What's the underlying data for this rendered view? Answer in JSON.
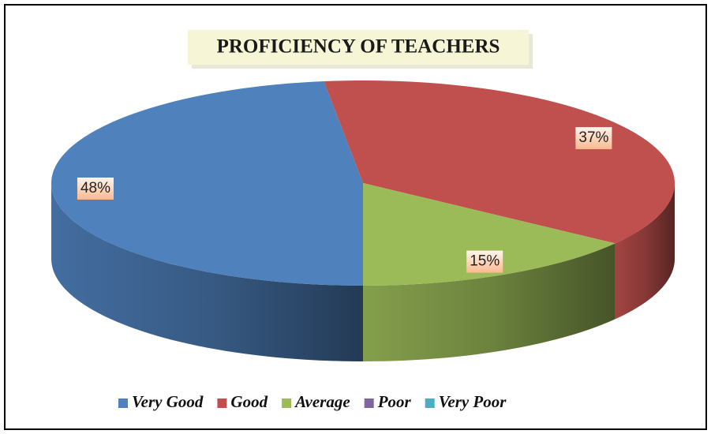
{
  "chart_data": {
    "type": "pie",
    "title": "PROFICIENCY OF TEACHERS",
    "categories": [
      "Very Good",
      "Good",
      "Average",
      "Poor",
      "Very Poor"
    ],
    "values": [
      48,
      37,
      15,
      0,
      0
    ],
    "value_labels": [
      "48%",
      "37%",
      "15%",
      null,
      null
    ],
    "colors": [
      "#4f81bd",
      "#c0504d",
      "#9bbb59",
      "#8064a2",
      "#4bacc6"
    ],
    "legend": "bottom"
  }
}
